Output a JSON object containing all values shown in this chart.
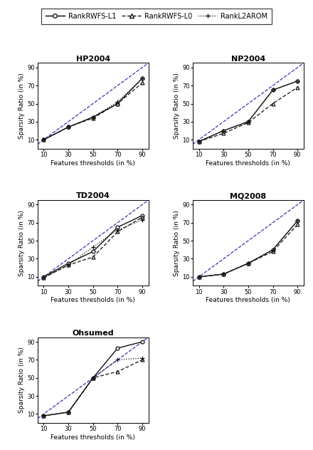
{
  "datasets": {
    "HP2004": {
      "x": [
        10,
        30,
        50,
        70,
        90
      ],
      "L1": [
        10,
        24,
        35,
        50,
        78
      ],
      "L0": [
        10,
        24,
        34,
        50,
        73
      ],
      "L2AROM": [
        10,
        24,
        35,
        52,
        78
      ]
    },
    "NP2004": {
      "x": [
        10,
        30,
        50,
        70,
        90
      ],
      "L1": [
        8,
        20,
        30,
        65,
        75
      ],
      "L0": [
        8,
        17,
        29,
        50,
        68
      ],
      "L2AROM": [
        8,
        20,
        30,
        65,
        75
      ]
    },
    "TD2004": {
      "x": [
        10,
        30,
        50,
        70,
        90
      ],
      "L1": [
        10,
        25,
        38,
        65,
        78
      ],
      "L0": [
        9,
        23,
        32,
        60,
        76
      ],
      "L2AROM": [
        9,
        23,
        43,
        62,
        73
      ]
    },
    "MQ2008": {
      "x": [
        10,
        30,
        50,
        70,
        90
      ],
      "L1": [
        10,
        13,
        25,
        40,
        72
      ],
      "L0": [
        10,
        13,
        25,
        38,
        68
      ],
      "L2AROM": [
        10,
        13,
        25,
        40,
        72
      ]
    },
    "Ohsumed": {
      "x": [
        10,
        30,
        50,
        70,
        90
      ],
      "L1": [
        8,
        12,
        50,
        83,
        90
      ],
      "L0": [
        8,
        12,
        50,
        57,
        70
      ],
      "L2AROM": [
        8,
        12,
        50,
        70,
        72
      ]
    }
  },
  "xlim": [
    5,
    95
  ],
  "ylim": [
    0,
    95
  ],
  "xticks": [
    10,
    30,
    50,
    70,
    90
  ],
  "yticks": [
    10,
    30,
    50,
    70,
    90
  ],
  "xlabel": "Features thresholds (in %)",
  "ylabel": "Sparsity Ratio (in %)",
  "diag_color": "#3333bb",
  "line_color": "#111111",
  "subplot_order": [
    "HP2004",
    "NP2004",
    "TD2004",
    "MQ2008",
    "Ohsumed"
  ],
  "legend_labels": [
    "RankRWFS-L1",
    "RankRWFS-L0",
    "RankL2AROM"
  ],
  "title_fontsize": 8,
  "tick_fontsize": 6,
  "axis_label_fontsize": 6.5
}
